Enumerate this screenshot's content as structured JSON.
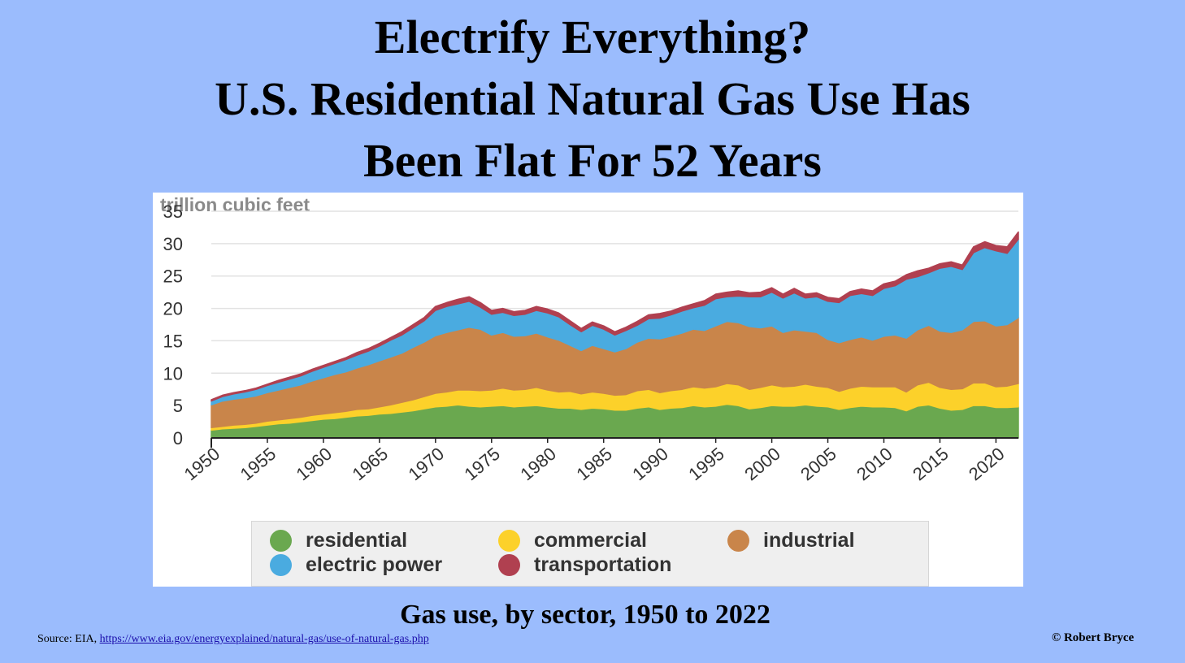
{
  "title_lines": [
    "Electrify Everything?",
    "U.S. Residential Natural Gas Use Has",
    "Been Flat For 52 Years"
  ],
  "subtitle": "Gas use, by sector, 1950 to 2022",
  "source": {
    "prefix": "Source: EIA, ",
    "link_text": "https://www.eia.gov/energyexplained/natural-gas/use-of-natural-gas.php"
  },
  "credit": "© Robert Bryce",
  "chart_data": {
    "type": "area",
    "stacked": true,
    "ylabel": "trillion cubic feet",
    "ylim": [
      0,
      35
    ],
    "yticks": [
      0,
      5,
      10,
      15,
      20,
      25,
      30,
      35
    ],
    "xlim": [
      1950,
      2022
    ],
    "xticks": [
      "1950",
      "1955",
      "1960",
      "1965",
      "1970",
      "1975",
      "1980",
      "1985",
      "1990",
      "1995",
      "2000",
      "2005",
      "2010",
      "2015",
      "2020"
    ],
    "grid": true,
    "legend_position": "bottom",
    "x": [
      1950,
      1951,
      1952,
      1953,
      1954,
      1955,
      1956,
      1957,
      1958,
      1959,
      1960,
      1961,
      1962,
      1963,
      1964,
      1965,
      1966,
      1967,
      1968,
      1969,
      1970,
      1971,
      1972,
      1973,
      1974,
      1975,
      1976,
      1977,
      1978,
      1979,
      1980,
      1981,
      1982,
      1983,
      1984,
      1985,
      1986,
      1987,
      1988,
      1989,
      1990,
      1991,
      1992,
      1993,
      1994,
      1995,
      1996,
      1997,
      1998,
      1999,
      2000,
      2001,
      2002,
      2003,
      2004,
      2005,
      2006,
      2007,
      2008,
      2009,
      2010,
      2011,
      2012,
      2013,
      2014,
      2015,
      2016,
      2017,
      2018,
      2019,
      2020,
      2021,
      2022
    ],
    "series": [
      {
        "name": "residential",
        "color": "#6aa84f",
        "values": [
          1.2,
          1.4,
          1.5,
          1.6,
          1.8,
          2.0,
          2.2,
          2.3,
          2.5,
          2.7,
          2.9,
          3.0,
          3.2,
          3.4,
          3.5,
          3.7,
          3.8,
          4.0,
          4.2,
          4.5,
          4.8,
          4.9,
          5.1,
          4.9,
          4.8,
          4.9,
          5.0,
          4.8,
          4.9,
          5.0,
          4.8,
          4.6,
          4.6,
          4.4,
          4.6,
          4.5,
          4.3,
          4.3,
          4.6,
          4.8,
          4.4,
          4.6,
          4.7,
          5.0,
          4.8,
          4.9,
          5.2,
          5.0,
          4.5,
          4.7,
          5.0,
          4.9,
          4.9,
          5.1,
          4.9,
          4.8,
          4.4,
          4.7,
          4.9,
          4.8,
          4.8,
          4.7,
          4.2,
          4.9,
          5.1,
          4.6,
          4.3,
          4.4,
          5.0,
          5.0,
          4.7,
          4.7,
          4.8
        ]
      },
      {
        "name": "commercial",
        "color": "#fcd12a",
        "values": [
          0.4,
          0.4,
          0.5,
          0.5,
          0.5,
          0.6,
          0.6,
          0.7,
          0.7,
          0.8,
          0.8,
          0.9,
          0.9,
          1.0,
          1.0,
          1.1,
          1.3,
          1.5,
          1.7,
          1.9,
          2.1,
          2.2,
          2.3,
          2.5,
          2.5,
          2.5,
          2.7,
          2.6,
          2.6,
          2.8,
          2.6,
          2.5,
          2.6,
          2.4,
          2.5,
          2.4,
          2.3,
          2.4,
          2.7,
          2.7,
          2.6,
          2.7,
          2.8,
          2.9,
          2.9,
          3.0,
          3.2,
          3.2,
          3.0,
          3.1,
          3.2,
          3.0,
          3.1,
          3.2,
          3.1,
          3.0,
          2.8,
          3.0,
          3.1,
          3.1,
          3.1,
          3.2,
          2.9,
          3.3,
          3.5,
          3.2,
          3.2,
          3.2,
          3.5,
          3.5,
          3.2,
          3.3,
          3.6
        ]
      },
      {
        "name": "industrial",
        "color": "#c9854a",
        "values": [
          3.5,
          3.9,
          4.0,
          4.1,
          4.2,
          4.4,
          4.6,
          4.8,
          5.0,
          5.3,
          5.6,
          5.9,
          6.1,
          6.4,
          6.8,
          7.1,
          7.4,
          7.6,
          8.1,
          8.4,
          8.9,
          9.2,
          9.3,
          9.7,
          9.5,
          8.5,
          8.6,
          8.3,
          8.3,
          8.4,
          8.2,
          8.0,
          7.1,
          6.7,
          7.2,
          6.9,
          6.7,
          7.1,
          7.5,
          7.9,
          8.3,
          8.4,
          8.7,
          8.9,
          8.9,
          9.4,
          9.6,
          9.6,
          9.7,
          9.2,
          9.1,
          8.4,
          8.7,
          8.2,
          8.3,
          7.4,
          7.5,
          7.5,
          7.6,
          7.2,
          7.8,
          8.0,
          8.3,
          8.5,
          8.8,
          8.7,
          8.8,
          9.1,
          9.5,
          9.6,
          9.4,
          9.5,
          10.2
        ]
      },
      {
        "name": "electric power",
        "color": "#4aabe0",
        "values": [
          0.6,
          0.7,
          0.8,
          0.9,
          1.0,
          1.1,
          1.2,
          1.3,
          1.4,
          1.5,
          1.6,
          1.7,
          1.9,
          2.0,
          2.1,
          2.3,
          2.6,
          2.8,
          3.0,
          3.3,
          3.9,
          4.0,
          4.0,
          4.0,
          3.4,
          3.2,
          3.1,
          3.2,
          3.3,
          3.5,
          3.7,
          3.6,
          3.2,
          2.9,
          3.1,
          3.0,
          2.6,
          2.8,
          2.6,
          3.0,
          3.2,
          3.3,
          3.4,
          3.3,
          3.9,
          4.2,
          3.8,
          4.1,
          4.6,
          4.8,
          5.2,
          5.3,
          5.7,
          5.1,
          5.5,
          5.9,
          6.2,
          6.8,
          6.7,
          6.9,
          7.4,
          7.6,
          9.1,
          8.2,
          8.1,
          9.7,
          10.2,
          9.3,
          10.6,
          11.3,
          11.6,
          11.0,
          12.1
        ]
      },
      {
        "name": "transportation",
        "color": "#b04050",
        "values": [
          0.2,
          0.2,
          0.2,
          0.2,
          0.2,
          0.2,
          0.3,
          0.3,
          0.3,
          0.3,
          0.3,
          0.3,
          0.3,
          0.4,
          0.4,
          0.4,
          0.4,
          0.5,
          0.5,
          0.5,
          0.6,
          0.6,
          0.7,
          0.7,
          0.7,
          0.6,
          0.6,
          0.6,
          0.6,
          0.6,
          0.6,
          0.6,
          0.6,
          0.5,
          0.5,
          0.5,
          0.5,
          0.5,
          0.6,
          0.6,
          0.7,
          0.6,
          0.6,
          0.6,
          0.7,
          0.7,
          0.7,
          0.8,
          0.6,
          0.7,
          0.7,
          0.6,
          0.7,
          0.6,
          0.6,
          0.6,
          0.6,
          0.6,
          0.7,
          0.7,
          0.7,
          0.7,
          0.7,
          0.9,
          0.7,
          0.7,
          0.7,
          0.7,
          0.9,
          0.9,
          0.8,
          1.0,
          1.1
        ]
      }
    ]
  }
}
